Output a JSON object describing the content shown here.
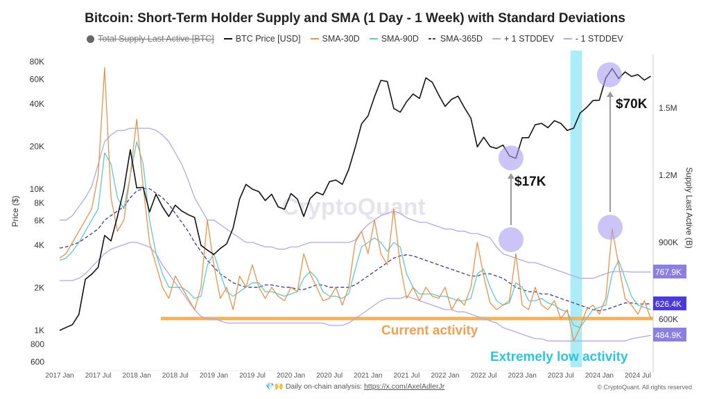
{
  "chart_data": {
    "type": "line",
    "title": "Bitcoin: Short-Term Holder Supply and SMA (1 Day - 1 Week) with Standard Deviations",
    "legend_position": "top",
    "legend": [
      {
        "label": "Total Supply Last Active [BTC]",
        "color": "#666666",
        "hidden": true
      },
      {
        "label": "BTC Price [USD]",
        "color": "#111111"
      },
      {
        "label": "SMA-30D",
        "color": "#e8914a"
      },
      {
        "label": "SMA-90D",
        "color": "#5ec8d0"
      },
      {
        "label": "SMA-365D",
        "color": "#3a3a9a",
        "dashed": true
      },
      {
        "label": "+ 1 STDDEV",
        "color": "#b0a8e8"
      },
      {
        "label": "- 1 STDDEV",
        "color": "#b0a8e8"
      }
    ],
    "x_start": "2017-01",
    "x_step": "month",
    "x_ticks": [
      "2017 Jan",
      "2017 Jul",
      "2018 Jan",
      "2018 Jul",
      "2019 Jan",
      "2019 Jul",
      "2020 Jan",
      "2020 Jul",
      "2021 Jan",
      "2021 Jul",
      "2022 Jan",
      "2022 Jul",
      "2023 Jan",
      "2023 Jul",
      "2024 Jan",
      "2024 Jul"
    ],
    "y_left": {
      "label": "Price ($)",
      "scale": "log",
      "range": [
        600,
        90000
      ],
      "ticks": [
        {
          "v": 80000,
          "t": "80K"
        },
        {
          "v": 60000,
          "t": "60K"
        },
        {
          "v": 40000,
          "t": "40K"
        },
        {
          "v": 20000,
          "t": "20K"
        },
        {
          "v": 10000,
          "t": "10K"
        },
        {
          "v": 8000,
          "t": "8K"
        },
        {
          "v": 6000,
          "t": "6K"
        },
        {
          "v": 4000,
          "t": "4K"
        },
        {
          "v": 2000,
          "t": "2K"
        },
        {
          "v": 1000,
          "t": "1K"
        },
        {
          "v": 800,
          "t": "800"
        },
        {
          "v": 600,
          "t": "600"
        }
      ]
    },
    "y_right": {
      "label": "Supply Last Active (B)",
      "scale": "linear",
      "range": [
        400000,
        1900000
      ],
      "ticks": [
        {
          "v": 1500000,
          "t": "1.5M"
        },
        {
          "v": 1200000,
          "t": "1.2M"
        },
        {
          "v": 900000,
          "t": "900K"
        },
        {
          "v": 600000,
          "t": "600K"
        }
      ]
    },
    "series": [
      {
        "name": "BTC Price [USD]",
        "axis": "left",
        "color": "#111111",
        "values": [
          1000,
          1050,
          1100,
          1300,
          2300,
          2500,
          2800,
          4700,
          4300,
          6400,
          10000,
          19000,
          10200,
          10300,
          6900,
          9200,
          7500,
          6400,
          7700,
          7000,
          6600,
          6300,
          4000,
          3700,
          3450,
          3800,
          4100,
          5300,
          8500,
          10800,
          10000,
          9600,
          8300,
          9200,
          7500,
          7200,
          9300,
          8500,
          6400,
          8600,
          9500,
          9100,
          11300,
          11600,
          10800,
          13800,
          19700,
          29000,
          33000,
          45000,
          58800,
          57700,
          37300,
          35000,
          41500,
          47100,
          43800,
          61300,
          57000,
          46300,
          38500,
          43200,
          45500,
          37700,
          31800,
          19900,
          23300,
          20000,
          19400,
          20500,
          17200,
          16500,
          23100,
          23100,
          28500,
          29200,
          27200,
          30500,
          29200,
          26000,
          27000,
          34500,
          37700,
          42300,
          42600,
          61200,
          71300,
          60600,
          67500,
          62700,
          64600,
          59000,
          63000
        ]
      },
      {
        "name": "SMA-30D",
        "axis": "right",
        "color": "#e8914a",
        "values": [
          830,
          850,
          900,
          950,
          1000,
          1050,
          1200,
          1680,
          1100,
          950,
          1000,
          1200,
          1450,
          1150,
          900,
          800,
          700,
          650,
          750,
          700,
          650,
          600,
          700,
          1000,
          800,
          650,
          700,
          600,
          750,
          700,
          800,
          700,
          650,
          700,
          660,
          640,
          700,
          680,
          850,
          760,
          700,
          640,
          650,
          700,
          620,
          700,
          900,
          950,
          850,
          1000,
          850,
          800,
          1050,
          800,
          650,
          700,
          640,
          700,
          660,
          650,
          700,
          600,
          650,
          620,
          700,
          900,
          750,
          630,
          600,
          620,
          640,
          850,
          620,
          600,
          700,
          620,
          600,
          640,
          560,
          600,
          460,
          520,
          600,
          620,
          580,
          650,
          960,
          800,
          650,
          620,
          580,
          640,
          560
        ],
        "unit": "K"
      },
      {
        "name": "SMA-90D",
        "axis": "right",
        "color": "#5ec8d0",
        "values": [
          820,
          830,
          860,
          900,
          950,
          1000,
          1050,
          1300,
          1250,
          1100,
          1050,
          1200,
          1350,
          1250,
          1000,
          850,
          760,
          700,
          700,
          700,
          680,
          650,
          660,
          800,
          850,
          760,
          680,
          660,
          680,
          700,
          720,
          720,
          680,
          680,
          670,
          660,
          670,
          680,
          740,
          770,
          740,
          680,
          660,
          660,
          650,
          670,
          780,
          880,
          900,
          920,
          900,
          860,
          900,
          880,
          760,
          700,
          670,
          670,
          670,
          660,
          660,
          650,
          640,
          640,
          650,
          760,
          780,
          700,
          640,
          620,
          630,
          720,
          700,
          640,
          640,
          650,
          630,
          620,
          600,
          590,
          530,
          520,
          560,
          600,
          610,
          620,
          760,
          820,
          740,
          660,
          620,
          610,
          600
        ],
        "unit": "K"
      },
      {
        "name": "SMA-365D",
        "axis": "right",
        "color": "#3a3a9a",
        "dashed": true,
        "values": [
          875,
          880,
          890,
          900,
          920,
          940,
          960,
          1000,
          1020,
          1040,
          1060,
          1100,
          1130,
          1140,
          1140,
          1120,
          1100,
          1070,
          1030,
          990,
          950,
          900,
          860,
          820,
          790,
          760,
          740,
          720,
          710,
          700,
          700,
          700,
          710,
          710,
          705,
          700,
          700,
          690,
          690,
          700,
          710,
          710,
          700,
          700,
          700,
          700,
          710,
          730,
          750,
          770,
          790,
          810,
          830,
          840,
          845,
          840,
          830,
          820,
          810,
          800,
          790,
          780,
          770,
          760,
          750,
          750,
          760,
          760,
          750,
          740,
          720,
          700,
          690,
          680,
          680,
          670,
          670,
          660,
          650,
          640,
          630,
          620,
          610,
          600,
          595,
          600,
          610,
          620,
          630,
          630,
          625,
          625,
          626.4
        ],
        "unit": "K"
      },
      {
        "name": "+ 1 STDDEV",
        "axis": "right",
        "color": "#b0a8e8",
        "values": [
          1000,
          1000,
          1020,
          1060,
          1100,
          1150,
          1250,
          1350,
          1380,
          1400,
          1400,
          1410,
          1410,
          1410,
          1410,
          1400,
          1380,
          1350,
          1300,
          1250,
          1180,
          1100,
          1050,
          1000,
          1000,
          980,
          960,
          940,
          920,
          900,
          900,
          890,
          880,
          880,
          870,
          870,
          880,
          880,
          890,
          900,
          900,
          900,
          900,
          900,
          900,
          900,
          910,
          950,
          980,
          1000,
          1020,
          1030,
          1040,
          1030,
          1010,
          1000,
          990,
          990,
          980,
          970,
          960,
          960,
          950,
          950,
          940,
          940,
          930,
          920,
          880,
          850,
          840,
          830,
          820,
          810,
          810,
          800,
          790,
          780,
          770,
          760,
          750,
          740,
          740,
          740,
          750,
          760,
          770,
          770,
          770,
          768,
          768,
          768,
          767.9
        ],
        "unit": "K"
      },
      {
        "name": "- 1 STDDEV",
        "axis": "right",
        "color": "#b0a8e8",
        "values": [
          730,
          730,
          730,
          740,
          760,
          790,
          820,
          850,
          870,
          880,
          890,
          900,
          900,
          890,
          880,
          850,
          800,
          760,
          720,
          680,
          640,
          600,
          570,
          560,
          560,
          550,
          540,
          540,
          540,
          540,
          540,
          540,
          540,
          540,
          540,
          540,
          540,
          540,
          540,
          540,
          540,
          540,
          530,
          530,
          530,
          540,
          560,
          580,
          600,
          620,
          640,
          650,
          650,
          650,
          660,
          650,
          640,
          630,
          620,
          610,
          600,
          600,
          590,
          590,
          580,
          570,
          560,
          550,
          540,
          520,
          510,
          500,
          490,
          480,
          470,
          470,
          460,
          460,
          460,
          460,
          460,
          460,
          460,
          460,
          460,
          460,
          460,
          460,
          460,
          470,
          475,
          480,
          484.9
        ],
        "unit": "K"
      }
    ],
    "last_value_badges": [
      {
        "text": "767.9K",
        "color": "#8b7fe0"
      },
      {
        "text": "626.4K",
        "color": "#4a3ad8"
      },
      {
        "text": "484.9K",
        "color": "#8b7fe0"
      }
    ],
    "annotations": {
      "price_17k": "$17K",
      "price_70k": "$70K",
      "current_activity": "Current activity",
      "low_activity": "Extremely low activity",
      "current_activity_level": 560,
      "low_activity_band": [
        "2023-08",
        "2023-09"
      ],
      "current_activity_color": "#f0b460",
      "low_activity_color": "#2ec4dc"
    },
    "watermark": "CryptoQuant"
  },
  "footer": {
    "text": "💎🙌 Daily on-chain analysis: ",
    "link": "https://x.com/AxelAdlerJr",
    "copyright": "© CryptoQuant. All rights reserved"
  }
}
